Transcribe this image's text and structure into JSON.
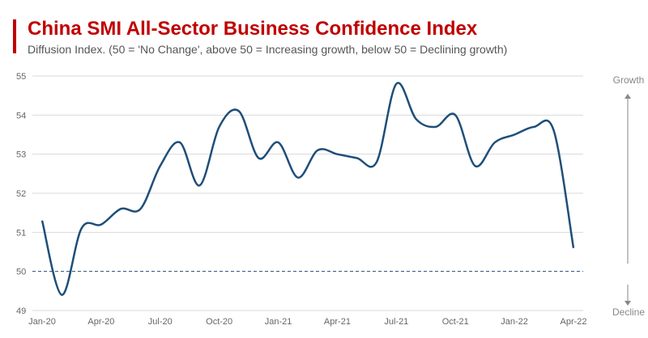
{
  "chart_data": {
    "type": "line",
    "title": "China SMI All-Sector Business Confidence Index",
    "subtitle": "Diffusion Index. (50 = 'No Change', above 50 = Increasing growth, below 50 = Declining growth)",
    "x": [
      "Jan-20",
      "Feb-20",
      "Mar-20",
      "Apr-20",
      "May-20",
      "Jun-20",
      "Jul-20",
      "Aug-20",
      "Sep-20",
      "Oct-20",
      "Nov-20",
      "Dec-20",
      "Jan-21",
      "Feb-21",
      "Mar-21",
      "Apr-21",
      "May-21",
      "Jun-21",
      "Jul-21",
      "Aug-21",
      "Sep-21",
      "Oct-21",
      "Nov-21",
      "Dec-21",
      "Jan-22",
      "Feb-22",
      "Mar-22",
      "Apr-22"
    ],
    "x_tick_labels": [
      "Jan-20",
      "Apr-20",
      "Jul-20",
      "Oct-20",
      "Jan-21",
      "Apr-21",
      "Jul-21",
      "Oct-21",
      "Jan-22",
      "Apr-22"
    ],
    "series": [
      {
        "values": [
          51.3,
          49.4,
          51.1,
          51.2,
          51.6,
          51.6,
          52.7,
          53.3,
          52.2,
          53.7,
          54.1,
          52.9,
          53.3,
          52.4,
          53.1,
          53.0,
          52.9,
          52.8,
          54.8,
          53.9,
          53.7,
          54.0,
          52.7,
          53.3,
          53.5,
          53.7,
          53.6,
          50.6
        ],
        "color": "#1f4e79"
      }
    ],
    "ylim": [
      49,
      55
    ],
    "y_ticks": [
      49,
      50,
      51,
      52,
      53,
      54,
      55
    ],
    "reference_line": {
      "value": 50,
      "style": "dashed",
      "color": "#1f4e79"
    },
    "grid": true,
    "side_labels": {
      "top": "Growth",
      "bottom": "Decline"
    },
    "title_color": "#c00000"
  }
}
